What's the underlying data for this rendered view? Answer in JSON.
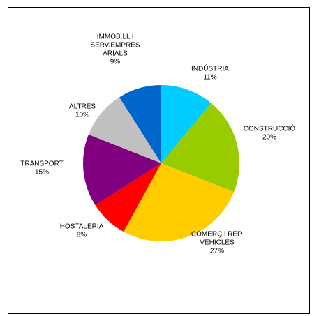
{
  "chart_data": {
    "type": "pie",
    "start_angle_deg": 0,
    "direction": "clockwise",
    "slices": [
      {
        "label": [
          "INDÚSTRIA"
        ],
        "value_label": "11%",
        "value": 11,
        "color": "#00CCFF"
      },
      {
        "label": [
          "CONSTRUCCIÓ"
        ],
        "value_label": "20%",
        "value": 20,
        "color": "#99CC00"
      },
      {
        "label": [
          "COMERÇ i REP.",
          "VEHICLES"
        ],
        "value_label": "27%",
        "value": 27,
        "color": "#FFCC00"
      },
      {
        "label": [
          "HOSTALERIA"
        ],
        "value_label": "8%",
        "value": 8,
        "color": "#FF0000"
      },
      {
        "label": [
          "TRANSPORT"
        ],
        "value_label": "15%",
        "value": 15,
        "color": "#800080"
      },
      {
        "label": [
          "ALTRES"
        ],
        "value_label": "10%",
        "value": 10,
        "color": "#C0C0C0"
      },
      {
        "label": [
          "IMMOB.LL i",
          "SERV.EMPRES",
          "ARIALS"
        ],
        "value_label": "9%",
        "value": 9,
        "color": "#0066CC"
      }
    ]
  }
}
